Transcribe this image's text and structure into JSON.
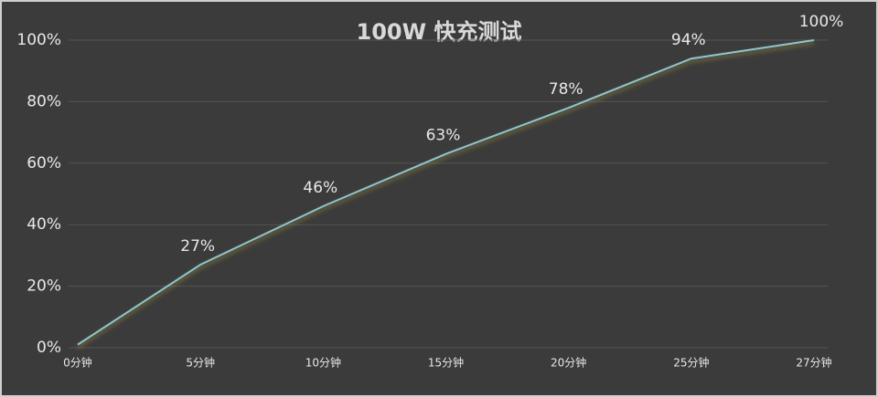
{
  "chart_data": {
    "type": "line",
    "title": "100W 快充测试",
    "categories": [
      "0分钟",
      "5分钟",
      "10分钟",
      "15分钟",
      "20分钟",
      "25分钟",
      "27分钟"
    ],
    "values": [
      1,
      27,
      46,
      63,
      78,
      94,
      100
    ],
    "value_labels": [
      null,
      "27%",
      "46%",
      "63%",
      "78%",
      "94%",
      "100%"
    ],
    "color": "#8ec5d2",
    "ylim": [
      0,
      100
    ],
    "yticks": [
      {
        "value": 0,
        "label": "0%"
      },
      {
        "value": 20,
        "label": "20%"
      },
      {
        "value": 40,
        "label": "40%"
      },
      {
        "value": 60,
        "label": "60%"
      },
      {
        "value": 80,
        "label": "80%"
      },
      {
        "value": 100,
        "label": "100%"
      }
    ],
    "grid": true
  }
}
